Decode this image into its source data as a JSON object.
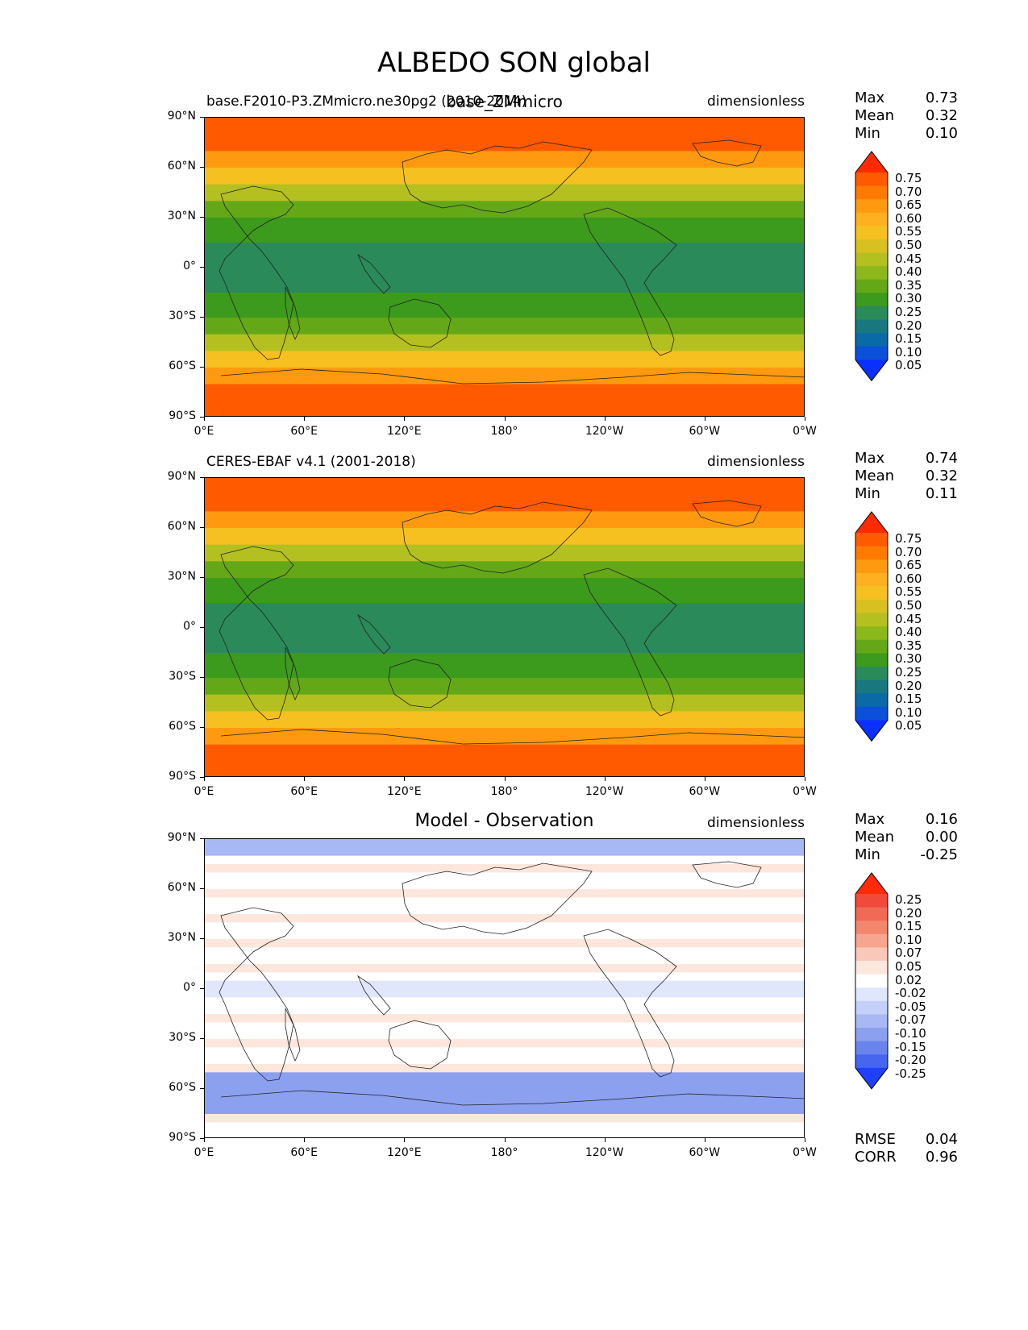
{
  "figure": {
    "title": "ALBEDO SON global"
  },
  "axes": {
    "lat_ticks": [
      "90°N",
      "60°N",
      "30°N",
      "0°",
      "30°S",
      "60°S",
      "90°S"
    ],
    "lon_ticks": [
      "0°E",
      "60°E",
      "120°E",
      "180°",
      "120°W",
      "60°W",
      "0°W"
    ]
  },
  "chart_data": [
    {
      "type": "heatmap",
      "title_left": "base.F2010-P3.ZMmicro.ne30pg2 (2010-2014)",
      "title_center": "base_ZMmicro",
      "units": "dimensionless",
      "stats": [
        {
          "label": "Max",
          "value": "0.73"
        },
        {
          "label": "Mean",
          "value": "0.32"
        },
        {
          "label": "Min",
          "value": "0.10"
        }
      ],
      "colorbar": {
        "labels": [
          "0.75",
          "0.70",
          "0.65",
          "0.60",
          "0.55",
          "0.50",
          "0.45",
          "0.40",
          "0.35",
          "0.30",
          "0.25",
          "0.20",
          "0.15",
          "0.10",
          "0.05"
        ],
        "colors": [
          "#ff2a00",
          "#ff5a00",
          "#ff7a00",
          "#ff9a10",
          "#ffb020",
          "#f5c020",
          "#d8c020",
          "#b4c020",
          "#8cb81c",
          "#64a818",
          "#3c9a1c",
          "#2a8a5a",
          "#18787e",
          "#0a6aa8",
          "#0a50d8",
          "#0a30ff"
        ]
      }
    },
    {
      "type": "heatmap",
      "title_left": "CERES-EBAF v4.1 (2001-2018)",
      "title_center": "",
      "units": "dimensionless",
      "stats": [
        {
          "label": "Max",
          "value": "0.74"
        },
        {
          "label": "Mean",
          "value": "0.32"
        },
        {
          "label": "Min",
          "value": "0.11"
        }
      ],
      "colorbar": {
        "labels": [
          "0.75",
          "0.70",
          "0.65",
          "0.60",
          "0.55",
          "0.50",
          "0.45",
          "0.40",
          "0.35",
          "0.30",
          "0.25",
          "0.20",
          "0.15",
          "0.10",
          "0.05"
        ],
        "colors": [
          "#ff2a00",
          "#ff5a00",
          "#ff7a00",
          "#ff9a10",
          "#ffb020",
          "#f5c020",
          "#d8c020",
          "#b4c020",
          "#8cb81c",
          "#64a818",
          "#3c9a1c",
          "#2a8a5a",
          "#18787e",
          "#0a6aa8",
          "#0a50d8",
          "#0a30ff"
        ]
      }
    },
    {
      "type": "heatmap",
      "title_left": "",
      "title_center": "Model - Observation",
      "units": "dimensionless",
      "stats": [
        {
          "label": "Max",
          "value": "0.16"
        },
        {
          "label": "Mean",
          "value": "0.00"
        },
        {
          "label": "Min",
          "value": "-0.25"
        }
      ],
      "extra_stats": [
        {
          "label": "RMSE",
          "value": "0.04"
        },
        {
          "label": "CORR",
          "value": "0.96"
        }
      ],
      "colorbar": {
        "labels": [
          "0.25",
          "0.20",
          "0.15",
          "0.10",
          "0.07",
          "0.05",
          "0.02",
          "-0.02",
          "-0.05",
          "-0.07",
          "-0.10",
          "-0.15",
          "-0.20",
          "-0.25"
        ],
        "colors": [
          "#ff2a0a",
          "#f04a3a",
          "#f06a55",
          "#f5866e",
          "#f7a58e",
          "#fac8b8",
          "#fde6dc",
          "#ffffff",
          "#e0e6fc",
          "#c4d0f8",
          "#a8b8f4",
          "#8ca0f0",
          "#6a84ee",
          "#4666f0",
          "#2040ff"
        ]
      }
    }
  ]
}
